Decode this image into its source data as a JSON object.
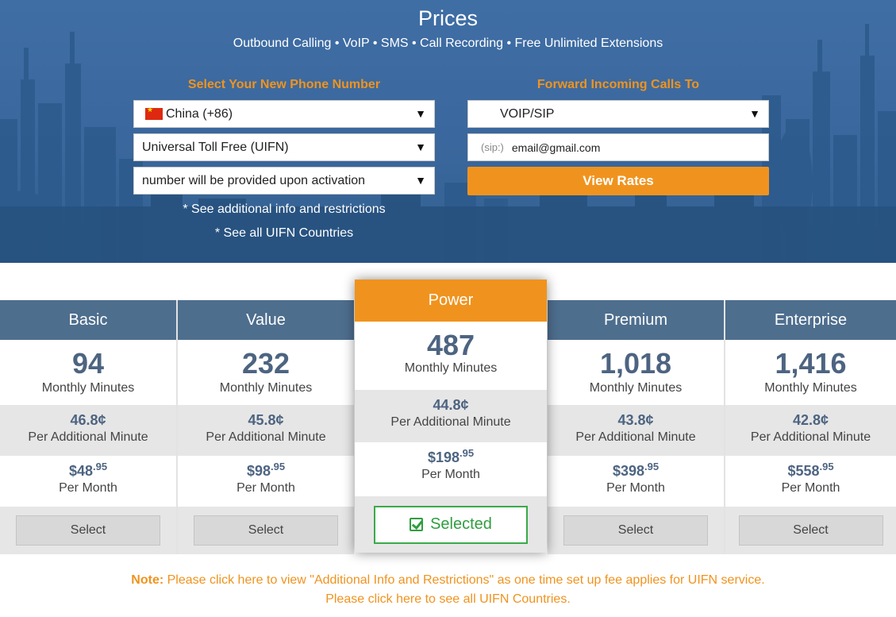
{
  "hero": {
    "title": "Prices",
    "subtitle": "Outbound Calling • VoIP • SMS • Call Recording • Free Unlimited Extensions",
    "left_label": "Select Your New Phone Number",
    "right_label": "Forward Incoming Calls To",
    "country_select": "China (+86)",
    "number_type_select": "Universal Toll Free (UIFN)",
    "number_select": "number will be provided upon activation",
    "forward_select": "VOIP/SIP",
    "sip_prefix": "(sip:)",
    "sip_value": "email@gmail.com",
    "view_rates_button": "View Rates",
    "link_info": "* See additional info and restrictions",
    "link_countries": "* See all UIFN Countries",
    "caret_glyph": "▼"
  },
  "plans": [
    {
      "name": "Basic",
      "minutes": "94",
      "minutes_label": "Monthly Minutes",
      "rate": "46.8¢",
      "rate_label": "Per Additional Minute",
      "price": "$48",
      "cents": ".95",
      "price_label": "Per Month",
      "button": "Select"
    },
    {
      "name": "Value",
      "minutes": "232",
      "minutes_label": "Monthly Minutes",
      "rate": "45.8¢",
      "rate_label": "Per Additional Minute",
      "price": "$98",
      "cents": ".95",
      "price_label": "Per Month",
      "button": "Select"
    },
    {
      "name": "Power",
      "minutes": "487",
      "minutes_label": "Monthly Minutes",
      "rate": "44.8¢",
      "rate_label": "Per Additional Minute",
      "price": "$198",
      "cents": ".95",
      "price_label": "Per Month",
      "button": "Selected"
    },
    {
      "name": "Premium",
      "minutes": "1,018",
      "minutes_label": "Monthly Minutes",
      "rate": "43.8¢",
      "rate_label": "Per Additional Minute",
      "price": "$398",
      "cents": ".95",
      "price_label": "Per Month",
      "button": "Select"
    },
    {
      "name": "Enterprise",
      "minutes": "1,416",
      "minutes_label": "Monthly Minutes",
      "rate": "42.8¢",
      "rate_label": "Per Additional Minute",
      "price": "$558",
      "cents": ".95",
      "price_label": "Per Month",
      "button": "Select"
    }
  ],
  "note": {
    "prefix": "Note:",
    "line1": " Please click here to view \"Additional Info and Restrictions\" as one time set up fee applies for UIFN service.",
    "line2": "Please click here to see all UIFN Countries."
  },
  "colors": {
    "accent": "#f0931e",
    "hero_bg": "#3a679d",
    "plan_header": "#4e6e8e",
    "selected_green": "#2f9e40"
  }
}
